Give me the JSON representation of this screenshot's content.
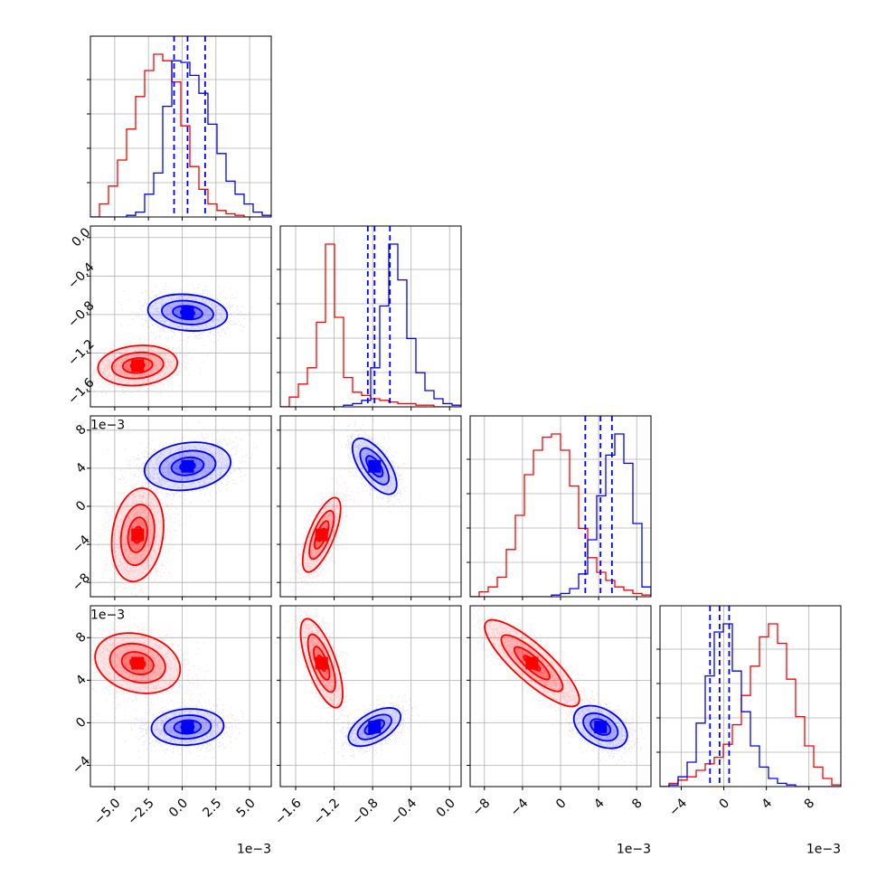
{
  "chart_data": {
    "type": "corner",
    "grid": true,
    "colors": {
      "red": "#ff0000",
      "blue": "#0000ff"
    },
    "offset_label": "1e−3",
    "params": [
      {
        "range": [
          -6.8,
          6.6
        ],
        "ticks": [
          -5.0,
          -2.5,
          0.0,
          2.5,
          5.0
        ],
        "tick_labels": [
          "−5.0",
          "−2.5",
          "0.0",
          "2.5",
          "5.0"
        ]
      },
      {
        "range": [
          -1.76,
          0.12
        ],
        "ticks": [
          -1.6,
          -1.2,
          -0.8,
          -0.4,
          0.0
        ],
        "tick_labels": [
          "−1.6",
          "−1.2",
          "−0.8",
          "−0.4",
          "0.0"
        ]
      },
      {
        "range": [
          -9.5,
          9.5
        ],
        "ticks": [
          -8,
          -4,
          0,
          4,
          8
        ],
        "tick_labels": [
          "−8",
          "−4",
          "0",
          "4",
          "8"
        ]
      },
      {
        "range": [
          -6.0,
          11.0
        ],
        "ticks": [
          -4,
          0,
          4,
          8
        ],
        "tick_labels": [
          "−4",
          "0",
          "4",
          "8"
        ]
      }
    ],
    "quantiles_blue": [
      [
        -0.6,
        0.4,
        1.7
      ],
      [
        -0.85,
        -0.78,
        -0.62
      ],
      [
        2.6,
        4.2,
        5.4
      ],
      [
        -1.3,
        -0.4,
        0.5
      ]
    ],
    "series": [
      {
        "color": "red",
        "mean": [
          -3.3,
          -1.33,
          -3.0,
          5.6
        ],
        "hist": [
          [
            0.0,
            0.08,
            0.19,
            0.35,
            0.54,
            0.74,
            0.9,
            1.0,
            0.96,
            0.83,
            0.56,
            0.31,
            0.17,
            0.08,
            0.04,
            0.02,
            0.01,
            0.0,
            0.0,
            0.0
          ],
          [
            0.0,
            0.06,
            0.14,
            0.24,
            0.52,
            1.0,
            0.55,
            0.18,
            0.09,
            0.07,
            0.05,
            0.04,
            0.03,
            0.02,
            0.02,
            0.01,
            0.01,
            0.0,
            0.0,
            0.0
          ],
          [
            0.0,
            0.03,
            0.06,
            0.12,
            0.29,
            0.5,
            0.75,
            0.9,
            0.98,
            1.0,
            0.9,
            0.68,
            0.42,
            0.24,
            0.15,
            0.1,
            0.06,
            0.04,
            0.02,
            0.01
          ],
          [
            0.0,
            0.02,
            0.04,
            0.06,
            0.1,
            0.14,
            0.18,
            0.26,
            0.38,
            0.56,
            0.74,
            0.92,
            1.0,
            0.88,
            0.66,
            0.43,
            0.25,
            0.12,
            0.05,
            0.01
          ]
        ]
      },
      {
        "color": "blue",
        "mean": [
          0.4,
          -0.78,
          4.2,
          -0.4
        ],
        "hist": [
          [
            0.0,
            0.0,
            0.0,
            0.0,
            0.01,
            0.03,
            0.14,
            0.27,
            0.68,
            0.96,
            0.95,
            0.87,
            0.76,
            0.57,
            0.39,
            0.22,
            0.14,
            0.08,
            0.03,
            0.01
          ],
          [
            0.0,
            0.0,
            0.0,
            0.0,
            0.0,
            0.0,
            0.0,
            0.01,
            0.02,
            0.04,
            0.24,
            0.62,
            1.0,
            0.78,
            0.42,
            0.21,
            0.1,
            0.05,
            0.02,
            0.01
          ],
          [
            0.0,
            0.0,
            0.0,
            0.0,
            0.0,
            0.0,
            0.0,
            0.0,
            0.0,
            0.01,
            0.02,
            0.05,
            0.14,
            0.35,
            0.62,
            0.87,
            1.0,
            0.82,
            0.45,
            0.06
          ],
          [
            0.0,
            0.01,
            0.06,
            0.15,
            0.39,
            0.68,
            0.95,
            1.0,
            0.71,
            0.46,
            0.25,
            0.12,
            0.05,
            0.02,
            0.01,
            0.0,
            0.0,
            0.0,
            0.0,
            0.0
          ]
        ]
      }
    ]
  }
}
